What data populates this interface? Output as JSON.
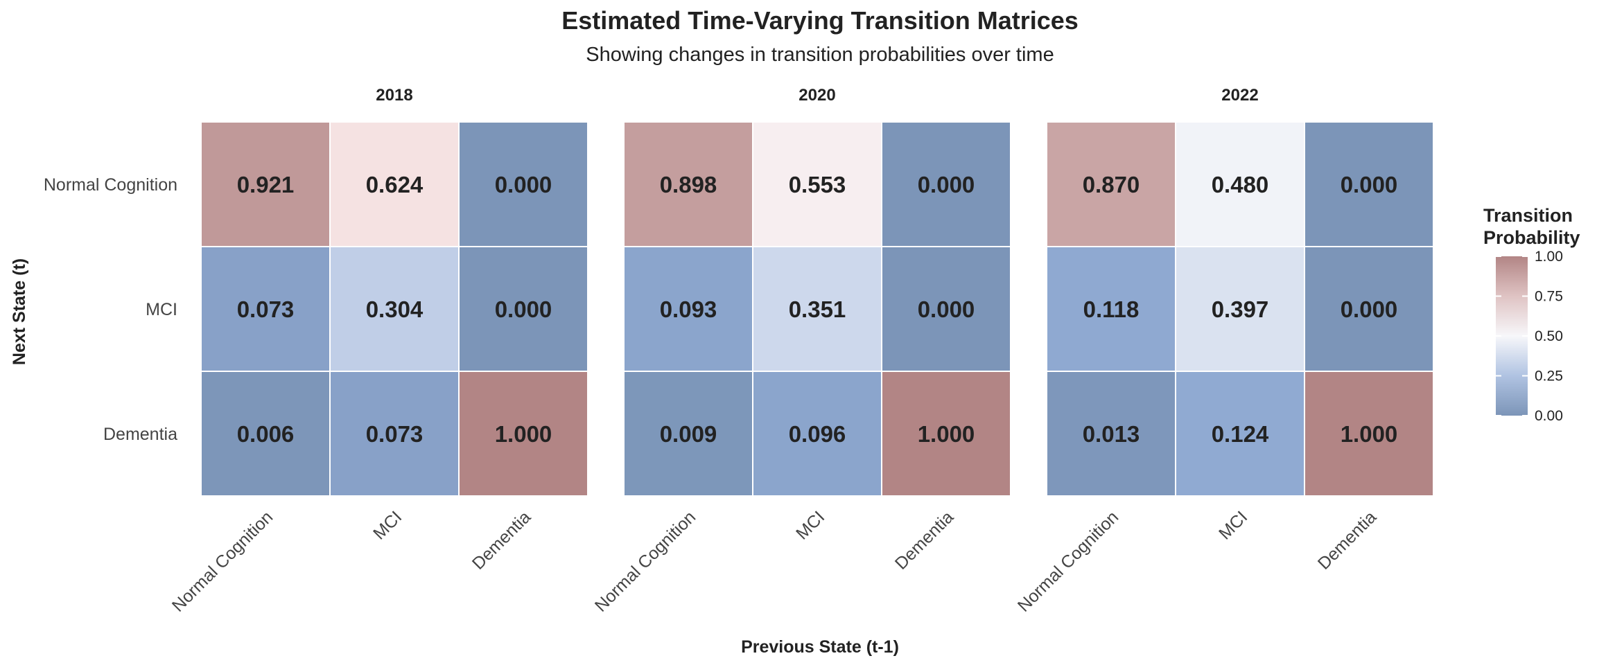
{
  "chart_data": {
    "type": "heatmap",
    "title": "Estimated Time-Varying Transition Matrices",
    "subtitle": "Showing changes in transition probabilities over time",
    "xlabel": "Previous State (t-1)",
    "ylabel": "Next State (t)",
    "x_categories": [
      "Normal Cognition",
      "MCI",
      "Dementia"
    ],
    "y_categories": [
      "Normal Cognition",
      "MCI",
      "Dementia"
    ],
    "facets": [
      {
        "label": "2018",
        "values": [
          [
            0.921,
            0.624,
            0.0
          ],
          [
            0.073,
            0.304,
            0.0
          ],
          [
            0.006,
            0.073,
            1.0
          ]
        ],
        "display": [
          [
            "0.921",
            "0.624",
            "0.000"
          ],
          [
            "0.073",
            "0.304",
            "0.000"
          ],
          [
            "0.006",
            "0.073",
            "1.000"
          ]
        ]
      },
      {
        "label": "2020",
        "values": [
          [
            0.898,
            0.553,
            0.0
          ],
          [
            0.093,
            0.351,
            0.0
          ],
          [
            0.009,
            0.096,
            1.0
          ]
        ],
        "display": [
          [
            "0.898",
            "0.553",
            "0.000"
          ],
          [
            "0.093",
            "0.351",
            "0.000"
          ],
          [
            "0.009",
            "0.096",
            "1.000"
          ]
        ]
      },
      {
        "label": "2022",
        "values": [
          [
            0.87,
            0.48,
            0.0
          ],
          [
            0.118,
            0.397,
            0.0
          ],
          [
            0.013,
            0.124,
            1.0
          ]
        ],
        "display": [
          [
            "0.870",
            "0.480",
            "0.000"
          ],
          [
            "0.118",
            "0.397",
            "0.000"
          ],
          [
            "0.013",
            "0.124",
            "1.000"
          ]
        ]
      }
    ],
    "legend": {
      "title_lines": [
        "Transition",
        "Probability"
      ],
      "placement": "right",
      "range": [
        0,
        1
      ],
      "ticks": [
        "1.00",
        "0.75",
        "0.50",
        "0.25",
        "0.00"
      ],
      "tick_values": [
        1.0,
        0.75,
        0.5,
        0.25,
        0.0
      ]
    },
    "colors": {
      "low": "#7c95b8",
      "lowmid": "#94aed8",
      "mid": "#f7f7fa",
      "highmid": "#f6e3e3",
      "high": "#b28585",
      "gridline": "#ffffff"
    },
    "grid": false
  }
}
